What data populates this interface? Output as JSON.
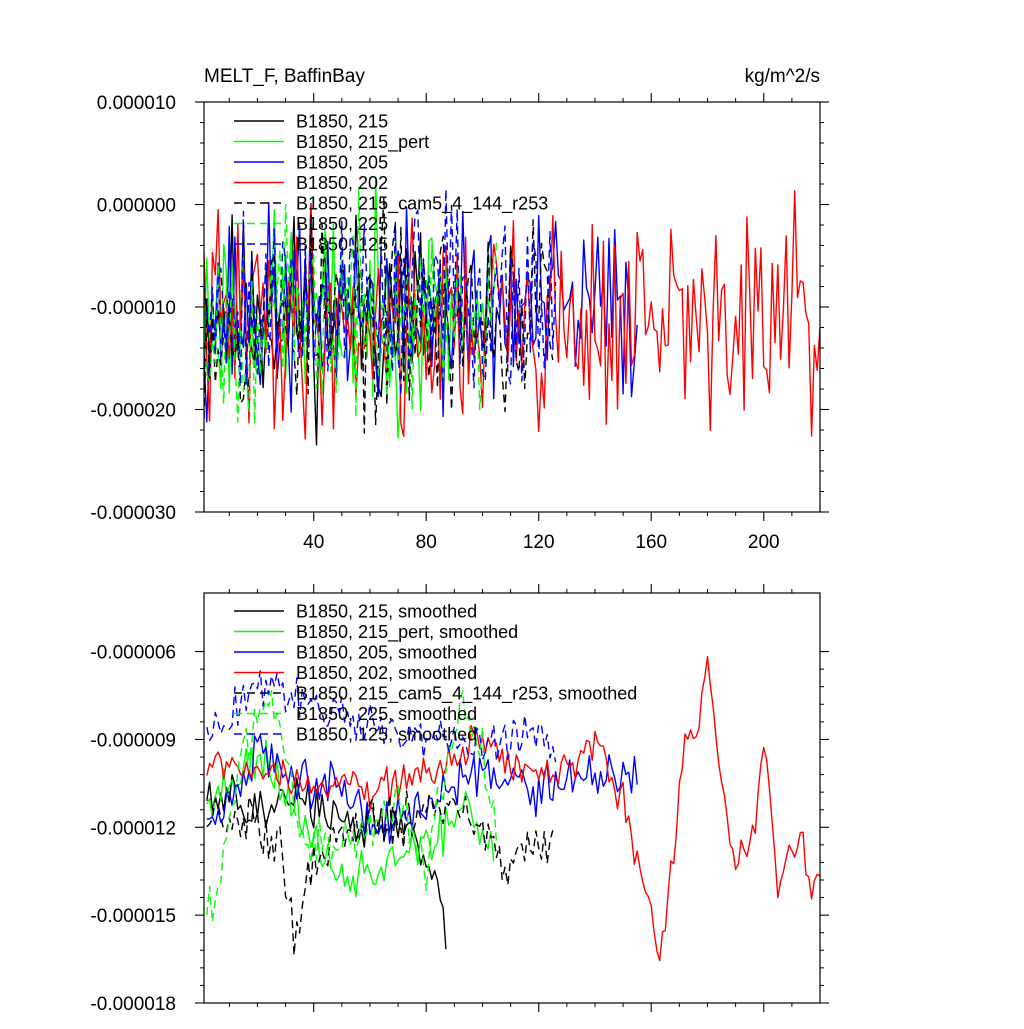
{
  "figure": {
    "title_left": "MELT_F, BaffinBay",
    "title_right": "kg/m^2/s"
  },
  "chart_data": [
    {
      "type": "line",
      "panel": "top",
      "title": "MELT_F, BaffinBay",
      "units": "kg/m^2/s",
      "xlim": [
        1,
        220
      ],
      "ylim": [
        -3e-05,
        1e-05
      ],
      "xticks": [
        40,
        80,
        120,
        160,
        200
      ],
      "xtick_labels": [
        "40",
        "80",
        "120",
        "160",
        "200"
      ],
      "yticks": [
        -3e-05,
        -2e-05,
        -1e-05,
        0,
        1e-05
      ],
      "ytick_labels": [
        "-0.000030",
        "-0.000020",
        "-0.000010",
        "0.000000",
        "0.000010"
      ],
      "legend": "top-left",
      "series": [
        {
          "name": "B1850, 215",
          "color": "#000000",
          "dash": "solid",
          "length": 87,
          "mean": -1.05e-05,
          "sd": 4.5e-06,
          "seed": 11
        },
        {
          "name": "B1850, 215_pert",
          "color": "#00ff00",
          "dash": "solid",
          "length": 104,
          "mean": -1.05e-05,
          "sd": 4.5e-06,
          "seed": 23
        },
        {
          "name": "B1850, 205",
          "color": "#0000ff",
          "dash": "solid",
          "length": 155,
          "mean": -1.05e-05,
          "sd": 4.5e-06,
          "seed": 37
        },
        {
          "name": "B1850, 202",
          "color": "#ff0000",
          "dash": "solid",
          "length": 220,
          "mean": -1.15e-05,
          "sd": 5e-06,
          "seed": 41
        },
        {
          "name": "B1850, 215_cam5_4_144_r253",
          "color": "#000000",
          "dash": "dashed",
          "length": 125,
          "mean": -1.1e-05,
          "sd": 4.5e-06,
          "seed": 53
        },
        {
          "name": "B1850, 225",
          "color": "#00ff00",
          "dash": "dashed",
          "length": 105,
          "mean": -1.1e-05,
          "sd": 4.5e-06,
          "seed": 67
        },
        {
          "name": "B1850, 125",
          "color": "#0000ff",
          "dash": "dashed",
          "length": 126,
          "mean": -9e-06,
          "sd": 4.5e-06,
          "seed": 79
        }
      ]
    },
    {
      "type": "line",
      "panel": "bottom",
      "xlim": [
        1,
        220
      ],
      "ylim": [
        -1.8e-05,
        -4e-06
      ],
      "xticks": [
        40,
        80,
        120,
        160,
        200
      ],
      "yticks": [
        -1.8e-05,
        -1.5e-05,
        -1.2e-05,
        -9e-06,
        -6e-06
      ],
      "ytick_labels": [
        "-0.000018",
        "-0.000015",
        "-0.000012",
        "-0.000009",
        "-0.000006"
      ],
      "legend": "top-left",
      "series": [
        {
          "name": "B1850, 215, smoothed",
          "color": "#000000",
          "dash": "solid",
          "length": 87,
          "mean": -1.15e-05,
          "sd": 1.2e-06,
          "seed": 11,
          "anchors": [
            [
              5,
              -1.08e-05
            ],
            [
              20,
              -1.14e-05
            ],
            [
              40,
              -1.11e-05
            ],
            [
              55,
              -1.2e-05
            ],
            [
              75,
              -1.2e-05
            ],
            [
              82,
              -1.35e-05
            ],
            [
              87,
              -1.53e-05
            ]
          ]
        },
        {
          "name": "B1850, 215_pert, smoothed",
          "color": "#00ff00",
          "dash": "solid",
          "length": 104,
          "mean": -1.15e-05,
          "sd": 1.2e-06,
          "seed": 23,
          "anchors": [
            [
              5,
              -1.1e-05
            ],
            [
              20,
              -9.5e-06
            ],
            [
              35,
              -1.15e-05
            ],
            [
              50,
              -1.38e-05
            ],
            [
              65,
              -1.35e-05
            ],
            [
              80,
              -1.28e-05
            ],
            [
              95,
              -1.1e-05
            ],
            [
              104,
              -1.25e-05
            ]
          ]
        },
        {
          "name": "B1850, 205, smoothed",
          "color": "#0000ff",
          "dash": "solid",
          "length": 155,
          "mean": -1.05e-05,
          "sd": 1.1e-06,
          "seed": 37,
          "anchors": [
            [
              5,
              -1.18e-05
            ],
            [
              20,
              -9.5e-06
            ],
            [
              35,
              -1.05e-05
            ],
            [
              50,
              -1.05e-05
            ],
            [
              60,
              -1.2e-05
            ],
            [
              80,
              -1.15e-05
            ],
            [
              100,
              -1e-05
            ],
            [
              120,
              -1.08e-05
            ],
            [
              140,
              -1.02e-05
            ],
            [
              155,
              -1.05e-05
            ]
          ]
        },
        {
          "name": "B1850, 202, smoothed",
          "color": "#ff0000",
          "dash": "solid",
          "length": 220,
          "mean": -1.05e-05,
          "sd": 9e-07,
          "seed": 41,
          "anchors": [
            [
              5,
              -9.8e-06
            ],
            [
              30,
              -1.02e-05
            ],
            [
              60,
              -1.08e-05
            ],
            [
              80,
              -1.02e-05
            ],
            [
              100,
              -9e-06
            ],
            [
              120,
              -1.03e-05
            ],
            [
              140,
              -9.2e-06
            ],
            [
              150,
              -1.12e-05
            ],
            [
              160,
              -1.48e-05
            ],
            [
              163,
              -1.65e-05
            ],
            [
              168,
              -1.3e-05
            ],
            [
              172,
              -9.2e-06
            ],
            [
              177,
              -8.2e-06
            ],
            [
              180,
              -6.2e-06
            ],
            [
              185,
              -1.05e-05
            ],
            [
              190,
              -1.35e-05
            ],
            [
              197,
              -1.18e-05
            ],
            [
              200,
              -9.3e-06
            ],
            [
              205,
              -1.42e-05
            ],
            [
              210,
              -1.28e-05
            ],
            [
              214,
              -1.22e-05
            ],
            [
              217,
              -1.48e-05
            ],
            [
              219,
              -1.35e-05
            ]
          ]
        },
        {
          "name": "B1850, 215_cam5_4_144_r253, smoothed",
          "color": "#000000",
          "dash": "dashed",
          "length": 125,
          "mean": -1.2e-05,
          "sd": 1.2e-06,
          "seed": 53,
          "anchors": [
            [
              5,
              -1.15e-05
            ],
            [
              20,
              -1.18e-05
            ],
            [
              28,
              -1.25e-05
            ],
            [
              33,
              -1.58e-05
            ],
            [
              38,
              -1.35e-05
            ],
            [
              50,
              -1.2e-05
            ],
            [
              70,
              -1.18e-05
            ],
            [
              90,
              -1.12e-05
            ],
            [
              100,
              -1.25e-05
            ],
            [
              110,
              -1.35e-05
            ],
            [
              125,
              -1.25e-05
            ]
          ]
        },
        {
          "name": "B1850, 225, smoothed",
          "color": "#00ff00",
          "dash": "dashed",
          "length": 105,
          "mean": -1.15e-05,
          "sd": 1.2e-06,
          "seed": 67,
          "anchors": [
            [
              5,
              -1.48e-05
            ],
            [
              15,
              -9.2e-06
            ],
            [
              25,
              -7.2e-06
            ],
            [
              35,
              -1.2e-05
            ],
            [
              50,
              -1.28e-05
            ],
            [
              70,
              -1.1e-05
            ],
            [
              80,
              -1.32e-05
            ],
            [
              92,
              -7.5e-06
            ],
            [
              100,
              -9.5e-06
            ],
            [
              105,
              -1.2e-05
            ]
          ]
        },
        {
          "name": "B1850, 125, smoothed",
          "color": "#0000ff",
          "dash": "dashed",
          "length": 126,
          "mean": -8.8e-06,
          "sd": 1e-06,
          "seed": 79,
          "anchors": [
            [
              5,
              -8.5e-06
            ],
            [
              20,
              -7.2e-06
            ],
            [
              35,
              -7.5e-06
            ],
            [
              60,
              -8.5e-06
            ],
            [
              80,
              -9e-06
            ],
            [
              100,
              -9.2e-06
            ],
            [
              115,
              -8.8e-06
            ],
            [
              126,
              -9.5e-06
            ]
          ]
        }
      ]
    }
  ]
}
